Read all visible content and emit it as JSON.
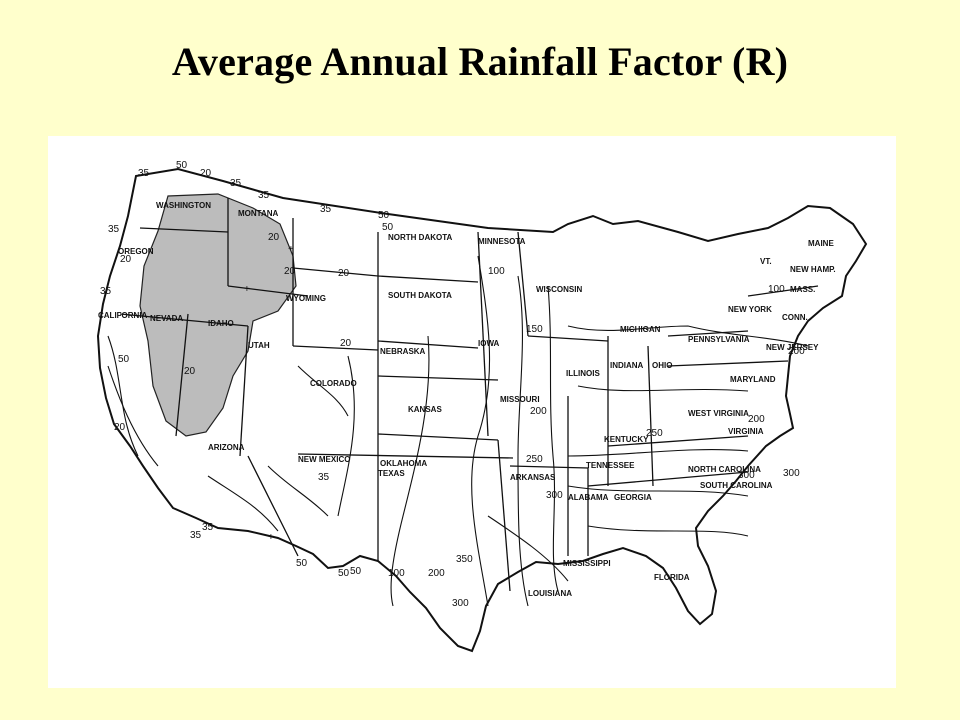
{
  "page": {
    "title": "Average Annual Rainfall Factor (R)",
    "background": "#ffffcc"
  },
  "map": {
    "type": "isoline map",
    "region": "Contiguous United States",
    "shaded_region_color": "#bbbbbb",
    "state_labels": [
      {
        "id": "washington",
        "text": "WASHINGTON"
      },
      {
        "id": "montana",
        "text": "MONTANA"
      },
      {
        "id": "oregon",
        "text": "OREGON"
      },
      {
        "id": "idaho",
        "text": "IDAHO"
      },
      {
        "id": "wyoming",
        "text": "WYOMING"
      },
      {
        "id": "california",
        "text": "CALIFORNIA"
      },
      {
        "id": "nevada",
        "text": "NEVADA"
      },
      {
        "id": "utah",
        "text": "UTAH"
      },
      {
        "id": "arizona",
        "text": "ARIZONA"
      },
      {
        "id": "colorado",
        "text": "COLORADO"
      },
      {
        "id": "new-mexico",
        "text": "NEW MEXICO"
      },
      {
        "id": "north-dakota",
        "text": "NORTH DAKOTA"
      },
      {
        "id": "south-dakota",
        "text": "SOUTH DAKOTA"
      },
      {
        "id": "nebraska",
        "text": "NEBRASKA"
      },
      {
        "id": "kansas",
        "text": "KANSAS"
      },
      {
        "id": "oklahoma",
        "text": "OKLAHOMA"
      },
      {
        "id": "texas",
        "text": "TEXAS"
      },
      {
        "id": "minnesota",
        "text": "MINNESOTA"
      },
      {
        "id": "iowa",
        "text": "IOWA"
      },
      {
        "id": "missouri",
        "text": "MISSOURI"
      },
      {
        "id": "arkansas",
        "text": "ARKANSAS"
      },
      {
        "id": "louisiana",
        "text": "LOUISIANA"
      },
      {
        "id": "wisconsin",
        "text": "WISCONSIN"
      },
      {
        "id": "illinois",
        "text": "ILLINOIS"
      },
      {
        "id": "mississippi",
        "text": "MISSISSIPPI"
      },
      {
        "id": "michigan",
        "text": "MICHIGAN"
      },
      {
        "id": "indiana",
        "text": "INDIANA"
      },
      {
        "id": "ohio",
        "text": "OHIO"
      },
      {
        "id": "kentucky",
        "text": "KENTUCKY"
      },
      {
        "id": "tennessee",
        "text": "TENNESSEE"
      },
      {
        "id": "alabama",
        "text": "ALABAMA"
      },
      {
        "id": "georgia",
        "text": "GEORGIA"
      },
      {
        "id": "florida",
        "text": "FLORIDA"
      },
      {
        "id": "south-carolina",
        "text": "SOUTH CAROLINA"
      },
      {
        "id": "north-carolina",
        "text": "NORTH CAROLINA"
      },
      {
        "id": "virginia",
        "text": "VIRGINIA"
      },
      {
        "id": "west-virginia",
        "text": "WEST VIRGINIA"
      },
      {
        "id": "pennsylvania",
        "text": "PENNSYLVANIA"
      },
      {
        "id": "new-york",
        "text": "NEW YORK"
      },
      {
        "id": "new-jersey",
        "text": "NEW JERSEY"
      },
      {
        "id": "maryland",
        "text": "MARYLAND"
      },
      {
        "id": "vermont",
        "text": "VT."
      },
      {
        "id": "new-hampshire",
        "text": "NEW HAMP."
      },
      {
        "id": "maine",
        "text": "MAINE"
      },
      {
        "id": "massachusetts",
        "text": "MASS."
      },
      {
        "id": "connecticut",
        "text": "CONN."
      }
    ],
    "isoline_values": [
      {
        "id": "v1",
        "text": "35"
      },
      {
        "id": "v2",
        "text": "50"
      },
      {
        "id": "v3",
        "text": "20"
      },
      {
        "id": "v4",
        "text": "35"
      },
      {
        "id": "v5",
        "text": "35"
      },
      {
        "id": "v6",
        "text": "35"
      },
      {
        "id": "v7",
        "text": "50"
      },
      {
        "id": "v8",
        "text": "20"
      },
      {
        "id": "v9",
        "text": "35"
      },
      {
        "id": "v10",
        "text": "20"
      },
      {
        "id": "v11",
        "text": "20"
      },
      {
        "id": "v12",
        "text": "20"
      },
      {
        "id": "v13",
        "text": "20"
      },
      {
        "id": "v14",
        "text": "35"
      },
      {
        "id": "v15",
        "text": "50"
      },
      {
        "id": "v16",
        "text": "20"
      },
      {
        "id": "v17",
        "text": "20"
      },
      {
        "id": "v18",
        "text": "35"
      },
      {
        "id": "v19",
        "text": "50"
      },
      {
        "id": "v20",
        "text": "35"
      },
      {
        "id": "v21",
        "text": "100"
      },
      {
        "id": "v22",
        "text": "150"
      },
      {
        "id": "v23",
        "text": "200"
      },
      {
        "id": "v24",
        "text": "250"
      },
      {
        "id": "v25",
        "text": "300"
      },
      {
        "id": "v26",
        "text": "350"
      },
      {
        "id": "v27",
        "text": "300"
      },
      {
        "id": "v28",
        "text": "200"
      },
      {
        "id": "v29",
        "text": "100"
      },
      {
        "id": "v30",
        "text": "50"
      },
      {
        "id": "v31",
        "text": "50"
      },
      {
        "id": "v32",
        "text": "200"
      },
      {
        "id": "v33",
        "text": "250"
      },
      {
        "id": "v34",
        "text": "300"
      },
      {
        "id": "v35",
        "text": "100"
      },
      {
        "id": "v36",
        "text": "200"
      },
      {
        "id": "v37",
        "text": "300"
      },
      {
        "id": "v38",
        "text": "50"
      },
      {
        "id": "v39",
        "text": "35"
      }
    ]
  }
}
